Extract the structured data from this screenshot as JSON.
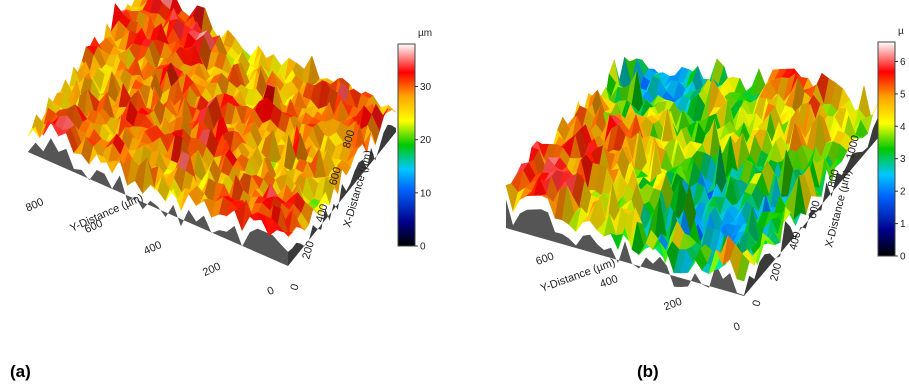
{
  "panels": [
    {
      "label": "(a)"
    },
    {
      "label": "(b)"
    }
  ],
  "chart_data": [
    {
      "type": "heatmap",
      "subtype": "3d-surface",
      "xlabel": "Y-Distance (µm)",
      "ylabel": "X-Distance (µm)",
      "y_axis_ticks": [
        "800",
        "600",
        "400",
        "200",
        "0"
      ],
      "x_axis_ticks": [
        "0",
        "200",
        "400",
        "600",
        "800"
      ],
      "colorbar": {
        "unit": "µm",
        "ticks": [
          "0",
          "10",
          "20",
          "30"
        ],
        "range": [
          0,
          38
        ]
      },
      "z_range_um": [
        15,
        38
      ],
      "colormap": [
        "#000000",
        "#00008b",
        "#0064ff",
        "#00c8ff",
        "#00c800",
        "#ffff00",
        "#ffa500",
        "#ff0000",
        "#ffffff"
      ],
      "floor_color": "#555555"
    },
    {
      "type": "heatmap",
      "subtype": "3d-surface",
      "xlabel": "Y-Distance (µm)",
      "ylabel": "X-Distance (µm)",
      "y_axis_ticks": [
        "600",
        "400",
        "200",
        "0"
      ],
      "x_axis_ticks": [
        "0",
        "200",
        "400",
        "600",
        "800",
        "1000"
      ],
      "colorbar": {
        "unit": "µ",
        "ticks": [
          "0",
          "1",
          "2",
          "3",
          "4",
          "5",
          "6"
        ],
        "range": [
          0,
          6.6
        ]
      },
      "z_range_um": [
        1.5,
        6.5
      ],
      "colormap": [
        "#000000",
        "#00008b",
        "#0064ff",
        "#00c8ff",
        "#00c800",
        "#ffff00",
        "#ffa500",
        "#ff0000",
        "#ffffff"
      ],
      "floor_color": "#555555"
    }
  ]
}
